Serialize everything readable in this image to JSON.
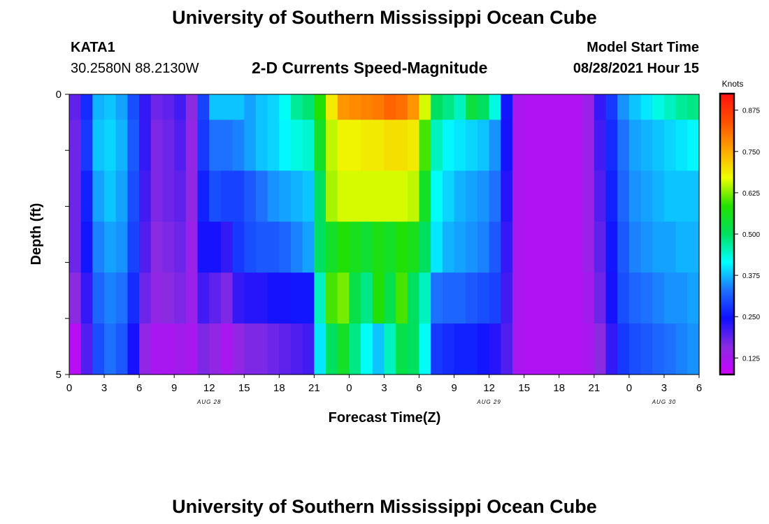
{
  "title": "University of Southern Mississippi Ocean Cube",
  "footer_title": "University of Southern Mississippi Ocean Cube",
  "station": {
    "id": "KATA1",
    "coords": "30.2580N  88.2130W"
  },
  "product": "2-D Currents Speed-Magnitude",
  "model": {
    "label": "Model Start Time",
    "value": "08/28/2021 Hour 15"
  },
  "chart_data": {
    "type": "heatmap",
    "title": "2-D Currents Speed-Magnitude",
    "xlabel": "Forecast Time(Z)",
    "ylabel": "Depth (ft)",
    "x_hours": [
      0,
      3,
      6,
      9,
      12,
      15,
      18,
      21,
      24,
      27,
      30,
      33,
      36,
      39,
      42,
      45,
      48,
      51,
      54
    ],
    "x_tick_labels": [
      "0",
      "3",
      "6",
      "9",
      "12",
      "15",
      "18",
      "21",
      "0",
      "3",
      "6",
      "9",
      "12",
      "15",
      "18",
      "21",
      "0",
      "3",
      "6"
    ],
    "date_labels": [
      {
        "text": "AUG 28",
        "hour": 12
      },
      {
        "text": "AUG 29",
        "hour": 36
      },
      {
        "text": "AUG 30",
        "hour": 51
      }
    ],
    "xlim": [
      0,
      54
    ],
    "ylim": [
      0,
      5
    ],
    "y_tick_labels": [
      "0",
      "5"
    ],
    "depth_rows": [
      0,
      1,
      2,
      3,
      4,
      5
    ],
    "colorbar": {
      "label": "Knots",
      "range": [
        0.075,
        0.925
      ],
      "ticks": [
        "0.125",
        "0.250",
        "0.375",
        "0.500",
        "0.625",
        "0.750",
        "0.875"
      ],
      "colors": [
        "#cc00ff",
        "#8a2be2",
        "#1010ff",
        "#1e70ff",
        "#00ffff",
        "#00e060",
        "#22e000",
        "#eeff00",
        "#ffa500",
        "#ff5000",
        "#ff1010"
      ]
    },
    "grid": false,
    "speed_knots": [
      [
        0.19,
        0.27,
        0.37,
        0.38,
        0.36,
        0.3,
        0.22,
        0.18,
        0.19,
        0.21,
        0.16,
        0.29,
        0.38,
        0.38,
        0.38,
        0.36,
        0.38,
        0.39,
        0.42,
        0.47,
        0.49,
        0.58,
        0.69,
        0.77,
        0.78,
        0.79,
        0.8,
        0.82,
        0.81,
        0.77,
        0.66,
        0.5,
        0.48,
        0.45,
        0.53,
        0.5,
        0.43,
        0.25,
        0.12,
        0.11,
        0.11,
        0.11,
        0.11,
        0.11,
        0.14,
        0.22,
        0.28,
        0.35,
        0.38,
        0.4,
        0.43,
        0.45,
        0.47,
        0.48
      ],
      [
        0.18,
        0.28,
        0.38,
        0.39,
        0.37,
        0.31,
        0.22,
        0.17,
        0.18,
        0.2,
        0.15,
        0.28,
        0.33,
        0.33,
        0.34,
        0.36,
        0.38,
        0.39,
        0.41,
        0.43,
        0.44,
        0.55,
        0.65,
        0.68,
        0.68,
        0.69,
        0.69,
        0.7,
        0.7,
        0.69,
        0.6,
        0.45,
        0.41,
        0.4,
        0.39,
        0.38,
        0.35,
        0.24,
        0.12,
        0.11,
        0.11,
        0.11,
        0.11,
        0.11,
        0.14,
        0.21,
        0.27,
        0.33,
        0.36,
        0.37,
        0.38,
        0.39,
        0.4,
        0.41
      ],
      [
        0.18,
        0.26,
        0.36,
        0.38,
        0.36,
        0.3,
        0.21,
        0.17,
        0.18,
        0.19,
        0.15,
        0.26,
        0.3,
        0.29,
        0.29,
        0.31,
        0.33,
        0.35,
        0.36,
        0.37,
        0.38,
        0.5,
        0.64,
        0.66,
        0.66,
        0.66,
        0.66,
        0.66,
        0.66,
        0.65,
        0.55,
        0.42,
        0.39,
        0.37,
        0.36,
        0.35,
        0.33,
        0.23,
        0.12,
        0.11,
        0.11,
        0.11,
        0.11,
        0.11,
        0.14,
        0.2,
        0.26,
        0.32,
        0.35,
        0.36,
        0.37,
        0.38,
        0.38,
        0.38
      ],
      [
        0.18,
        0.25,
        0.34,
        0.36,
        0.35,
        0.29,
        0.2,
        0.16,
        0.17,
        0.18,
        0.14,
        0.24,
        0.24,
        0.22,
        0.28,
        0.3,
        0.31,
        0.31,
        0.32,
        0.34,
        0.36,
        0.5,
        0.55,
        0.58,
        0.56,
        0.54,
        0.57,
        0.55,
        0.58,
        0.56,
        0.5,
        0.4,
        0.37,
        0.36,
        0.35,
        0.34,
        0.31,
        0.22,
        0.12,
        0.11,
        0.11,
        0.11,
        0.11,
        0.11,
        0.14,
        0.19,
        0.25,
        0.31,
        0.34,
        0.35,
        0.36,
        0.36,
        0.37,
        0.37
      ],
      [
        0.16,
        0.22,
        0.32,
        0.34,
        0.33,
        0.27,
        0.18,
        0.15,
        0.16,
        0.17,
        0.14,
        0.21,
        0.19,
        0.17,
        0.22,
        0.23,
        0.23,
        0.24,
        0.24,
        0.25,
        0.25,
        0.45,
        0.6,
        0.62,
        0.52,
        0.48,
        0.58,
        0.52,
        0.6,
        0.5,
        0.45,
        0.33,
        0.32,
        0.32,
        0.31,
        0.3,
        0.29,
        0.21,
        0.12,
        0.11,
        0.11,
        0.11,
        0.11,
        0.11,
        0.13,
        0.18,
        0.24,
        0.3,
        0.32,
        0.33,
        0.34,
        0.35,
        0.35,
        0.36
      ],
      [
        0.1,
        0.2,
        0.3,
        0.33,
        0.31,
        0.24,
        0.15,
        0.12,
        0.12,
        0.13,
        0.12,
        0.17,
        0.15,
        0.12,
        0.15,
        0.17,
        0.17,
        0.18,
        0.19,
        0.2,
        0.21,
        0.4,
        0.5,
        0.55,
        0.48,
        0.42,
        0.38,
        0.45,
        0.52,
        0.5,
        0.42,
        0.28,
        0.27,
        0.26,
        0.26,
        0.25,
        0.23,
        0.2,
        0.12,
        0.11,
        0.11,
        0.11,
        0.11,
        0.11,
        0.12,
        0.16,
        0.22,
        0.28,
        0.3,
        0.31,
        0.32,
        0.33,
        0.34,
        0.35
      ]
    ]
  }
}
